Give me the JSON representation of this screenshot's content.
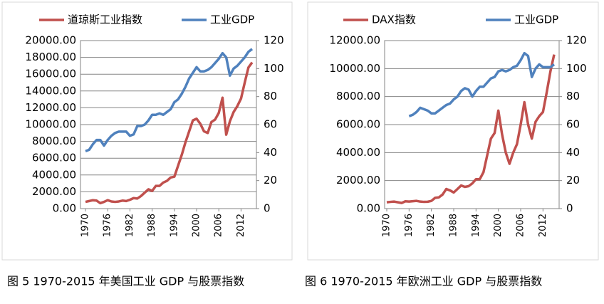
{
  "chart_data": [
    {
      "type": "line",
      "caption": "图 5 1970-2015 年美国工业 GDP 与股票指数",
      "legend": "top",
      "grid": true,
      "x": [
        1970,
        1971,
        1972,
        1973,
        1974,
        1975,
        1976,
        1977,
        1978,
        1979,
        1980,
        1981,
        1982,
        1983,
        1984,
        1985,
        1986,
        1987,
        1988,
        1989,
        1990,
        1991,
        1992,
        1993,
        1994,
        1995,
        1996,
        1997,
        1998,
        1999,
        2000,
        2001,
        2002,
        2003,
        2004,
        2005,
        2006,
        2007,
        2008,
        2009,
        2010,
        2011,
        2012,
        2013,
        2014,
        2015
      ],
      "xlim": [
        1970,
        2015
      ],
      "xticks": [
        1970,
        1976,
        1982,
        1988,
        1994,
        2000,
        2006,
        2012
      ],
      "ylim": [
        0,
        20000
      ],
      "yticks": [
        {
          "value": 0,
          "label": "0.00"
        },
        {
          "value": 2000,
          "label": "2000.00"
        },
        {
          "value": 4000,
          "label": "4000.00"
        },
        {
          "value": 6000,
          "label": "6000.00"
        },
        {
          "value": 8000,
          "label": "8000.00"
        },
        {
          "value": 10000,
          "label": "10000.00"
        },
        {
          "value": 12000,
          "label": "12000.00"
        },
        {
          "value": 14000,
          "label": "14000.00"
        },
        {
          "value": 16000,
          "label": "16000.00"
        },
        {
          "value": 18000,
          "label": "18000.00"
        },
        {
          "value": 20000,
          "label": "20000.00"
        }
      ],
      "y2lim": [
        0,
        120
      ],
      "y2ticks": [
        0,
        20,
        40,
        60,
        80,
        100,
        120
      ],
      "series": [
        {
          "name": "道琼斯工业指数",
          "color": "#c0504d",
          "values": [
            800,
            900,
            1000,
            950,
            650,
            800,
            1000,
            850,
            800,
            850,
            950,
            900,
            1050,
            1250,
            1200,
            1500,
            1900,
            2300,
            2100,
            2700,
            2700,
            3100,
            3300,
            3700,
            3800,
            5100,
            6400,
            7900,
            9200,
            10500,
            10700,
            10100,
            9200,
            9000,
            10300,
            10600,
            11400,
            13200,
            8800,
            10400,
            11500,
            12200,
            13100,
            15000,
            16800,
            17400
          ]
        },
        {
          "name": "工业GDP",
          "color": "#4f81bd",
          "axis": "y2",
          "values": [
            41,
            42,
            46,
            49,
            49,
            45,
            49,
            52,
            54,
            55,
            55,
            55,
            52,
            53,
            59,
            59,
            60,
            63,
            67,
            67,
            68,
            67,
            69,
            71,
            76,
            78,
            82,
            87,
            93,
            97,
            101,
            98,
            98,
            99,
            101,
            104,
            107,
            111,
            108,
            95,
            100,
            102,
            105,
            108,
            112,
            114
          ]
        }
      ]
    },
    {
      "type": "line",
      "caption": "图 6 1970-2015 年欧洲工业 GDP 与股票指数",
      "legend": "top",
      "grid": true,
      "x": [
        1970,
        1971,
        1972,
        1973,
        1974,
        1975,
        1976,
        1977,
        1978,
        1979,
        1980,
        1981,
        1982,
        1983,
        1984,
        1985,
        1986,
        1987,
        1988,
        1989,
        1990,
        1991,
        1992,
        1993,
        1994,
        1995,
        1996,
        1997,
        1998,
        1999,
        2000,
        2001,
        2002,
        2003,
        2004,
        2005,
        2006,
        2007,
        2008,
        2009,
        2010,
        2011,
        2012,
        2013,
        2014,
        2015
      ],
      "xlim": [
        1970,
        2015
      ],
      "xticks": [
        1970,
        1976,
        1982,
        1988,
        1994,
        2000,
        2006,
        2012
      ],
      "ylim": [
        0,
        12000
      ],
      "yticks": [
        {
          "value": 0,
          "label": "0.00"
        },
        {
          "value": 2000,
          "label": "2000.00"
        },
        {
          "value": 4000,
          "label": "4000.00"
        },
        {
          "value": 6000,
          "label": "6000.00"
        },
        {
          "value": 8000,
          "label": "8000.00"
        },
        {
          "value": 10000,
          "label": "10000.00"
        },
        {
          "value": 12000,
          "label": "12000.00"
        }
      ],
      "y2lim": [
        0,
        120
      ],
      "y2ticks": [
        0,
        20,
        40,
        60,
        80,
        100,
        120
      ],
      "series": [
        {
          "name": "DAX指数",
          "color": "#c0504d",
          "values": [
            450,
            480,
            500,
            450,
            400,
            520,
            500,
            530,
            550,
            500,
            480,
            490,
            550,
            770,
            800,
            1000,
            1400,
            1300,
            1150,
            1400,
            1650,
            1550,
            1600,
            1800,
            2100,
            2100,
            2600,
            3800,
            5000,
            5400,
            7000,
            5300,
            4000,
            3200,
            4000,
            4600,
            6000,
            7600,
            6000,
            5000,
            6200,
            6600,
            6900,
            8300,
            9800,
            11000
          ]
        },
        {
          "name": "工业GDP",
          "color": "#4f81bd",
          "axis": "y2",
          "values": [
            null,
            null,
            null,
            null,
            null,
            null,
            66,
            67,
            69,
            72,
            71,
            70,
            68,
            68,
            70,
            72,
            74,
            75,
            78,
            80,
            84,
            86,
            85,
            80,
            84,
            87,
            87,
            90,
            93,
            94,
            98,
            99,
            98,
            99,
            101,
            102,
            106,
            111,
            109,
            94,
            100,
            103,
            101,
            101,
            101,
            103
          ]
        }
      ]
    }
  ]
}
